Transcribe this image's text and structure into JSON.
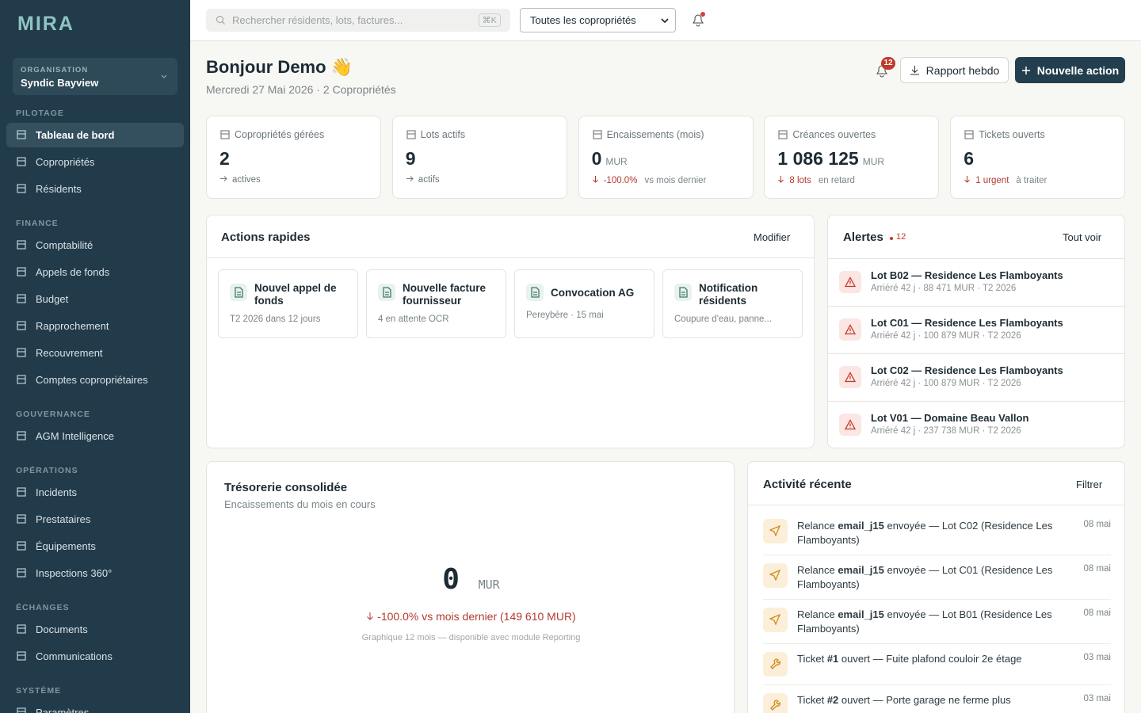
{
  "sidebar": {
    "logo": "MIRA",
    "org_label": "ORGANISATION",
    "org_name": "Syndic Bayview",
    "sections": [
      {
        "title": "PILOTAGE",
        "items": [
          "Tableau de bord",
          "Copropriétés",
          "Résidents"
        ]
      },
      {
        "title": "FINANCE",
        "items": [
          "Comptabilité",
          "Appels de fonds",
          "Budget",
          "Rapprochement",
          "Recouvrement",
          "Comptes copropriétaires"
        ]
      },
      {
        "title": "GOUVERNANCE",
        "items": [
          "AGM Intelligence"
        ]
      },
      {
        "title": "OPÉRATIONS",
        "items": [
          "Incidents",
          "Prestataires",
          "Équipements",
          "Inspections 360°"
        ]
      },
      {
        "title": "ÉCHANGES",
        "items": [
          "Documents",
          "Communications"
        ]
      },
      {
        "title": "SYSTÈME",
        "items": [
          "Paramètres"
        ]
      }
    ]
  },
  "topbar": {
    "search_placeholder": "Rechercher résidents, lots, factures...",
    "shortcut": "⌘K",
    "filter": "Toutes les copropriétés"
  },
  "header": {
    "greeting": "Bonjour Demo 👋",
    "date_line": "Mercredi 27 Mai 2026 · 2 Copropriétés",
    "notifications": 12,
    "buttons": [
      "Rapport hebdo",
      "Nouvelle action"
    ]
  },
  "kpis": [
    {
      "label": "Copropriétés gérées",
      "value": "2",
      "trend": "actives"
    },
    {
      "label": "Lots actifs",
      "value": "9",
      "trend": "actifs"
    },
    {
      "label": "Encaissements (mois)",
      "value": "0",
      "unit": "MUR",
      "trend": "-100.0%",
      "trend_note": "vs mois dernier"
    },
    {
      "label": "Créances ouvertes",
      "value": "1 086 125",
      "unit": "MUR",
      "trend": "8 lots",
      "trend_note": "en retard"
    },
    {
      "label": "Tickets ouverts",
      "value": "6",
      "trend": "1 urgent",
      "trend_note": "à traiter"
    }
  ],
  "quick_actions": {
    "title": "Actions rapides",
    "edit": "Modifier",
    "items": [
      {
        "title": "Nouvel appel de fonds",
        "sub": "T2 2026 dans 12 jours"
      },
      {
        "title": "Nouvelle facture fournisseur",
        "sub": "4 en attente OCR"
      },
      {
        "title": "Convocation AG",
        "sub": "Pereybère · 15 mai"
      },
      {
        "title": "Notification résidents",
        "sub": "Coupure d'eau, panne..."
      }
    ]
  },
  "alerts": {
    "title": "Alertes",
    "count": 12,
    "see_all": "Tout voir",
    "items": [
      {
        "title": "Lot B02 — Residence Les Flamboyants",
        "detail": "Arriéré 42 j · 88 471 MUR · T2 2026"
      },
      {
        "title": "Lot C01 — Residence Les Flamboyants",
        "detail": "Arriéré 42 j · 100 879 MUR · T2 2026"
      },
      {
        "title": "Lot C02 — Residence Les Flamboyants",
        "detail": "Arriéré 42 j · 100 879 MUR · T2 2026"
      },
      {
        "title": "Lot V01 — Domaine Beau Vallon",
        "detail": "Arriéré 42 j · 237 738 MUR · T2 2026"
      }
    ]
  },
  "treasury": {
    "title": "Trésorerie consolidée",
    "subtitle": "Encaissements du mois en cours",
    "value": "0",
    "unit": "MUR",
    "change": "-100.0% vs mois dernier (149 610 MUR)",
    "note": "Graphique 12 mois — disponible avec module Reporting"
  },
  "activity": {
    "title": "Activité récente",
    "filter": "Filtrer",
    "items": [
      {
        "prefix": "Relance ",
        "bold": "email_j15",
        "suffix": " envoyée — Lot C02 (Residence Les Flamboyants)",
        "date": "08 mai"
      },
      {
        "prefix": "Relance ",
        "bold": "email_j15",
        "suffix": " envoyée — Lot C01 (Residence Les Flamboyants)",
        "date": "08 mai"
      },
      {
        "prefix": "Relance ",
        "bold": "email_j15",
        "suffix": " envoyée — Lot B01 (Residence Les Flamboyants)",
        "date": "08 mai"
      },
      {
        "prefix": "Ticket ",
        "bold": "#1",
        "suffix": " ouvert — Fuite plafond couloir 2e étage",
        "date": "03 mai"
      },
      {
        "prefix": "Ticket ",
        "bold": "#2",
        "suffix": " ouvert — Porte garage ne ferme plus",
        "date": "03 mai"
      }
    ]
  }
}
